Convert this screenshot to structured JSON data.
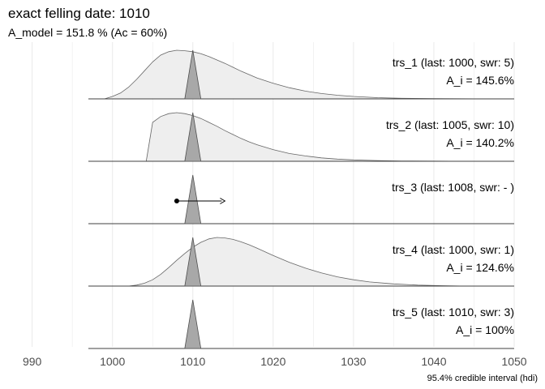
{
  "chart_data": {
    "type": "area",
    "title": "exact felling date:  1010",
    "subtitle": "A_model =  151.8 % (Ac = 60%)",
    "caption": "95.4% credible interval (hdi)",
    "xlim": [
      986,
      1050
    ],
    "x_ticks": [
      "990",
      "1000",
      "1010",
      "1020",
      "1030",
      "1040",
      "1050"
    ],
    "x_tick_values": [
      990,
      1000,
      1010,
      1020,
      1030,
      1040,
      1050
    ],
    "felling_date": 1010,
    "panels": [
      {
        "label": "trs_1 (last: 1000, swr: 5)",
        "agreement": "A_i = 145.6%",
        "density": [
          [
            999,
            0.0
          ],
          [
            1000,
            0.05
          ],
          [
            1001,
            0.12
          ],
          [
            1002,
            0.24
          ],
          [
            1003,
            0.4
          ],
          [
            1004,
            0.58
          ],
          [
            1005,
            0.76
          ],
          [
            1006,
            0.9
          ],
          [
            1007,
            0.97
          ],
          [
            1008,
            1.0
          ],
          [
            1009,
            0.99
          ],
          [
            1010,
            0.97
          ],
          [
            1011,
            0.93
          ],
          [
            1012,
            0.87
          ],
          [
            1013,
            0.8
          ],
          [
            1014,
            0.73
          ],
          [
            1015,
            0.65
          ],
          [
            1016,
            0.57
          ],
          [
            1017,
            0.5
          ],
          [
            1018,
            0.43
          ],
          [
            1020,
            0.32
          ],
          [
            1022,
            0.23
          ],
          [
            1024,
            0.16
          ],
          [
            1026,
            0.11
          ],
          [
            1028,
            0.075
          ],
          [
            1030,
            0.05
          ],
          [
            1033,
            0.025
          ],
          [
            1036,
            0.012
          ],
          [
            1040,
            0.005
          ],
          [
            1045,
            0.002
          ],
          [
            1048,
            0.0
          ]
        ]
      },
      {
        "label": "trs_2 (last: 1005, swr: 10)",
        "agreement": "A_i = 140.2%",
        "density": [
          [
            1004.2,
            0.0
          ],
          [
            1005,
            0.8
          ],
          [
            1006,
            0.92
          ],
          [
            1007,
            0.98
          ],
          [
            1008,
            1.0
          ],
          [
            1009,
            0.98
          ],
          [
            1010,
            0.94
          ],
          [
            1011,
            0.88
          ],
          [
            1012,
            0.8
          ],
          [
            1013,
            0.72
          ],
          [
            1014,
            0.63
          ],
          [
            1015,
            0.55
          ],
          [
            1016,
            0.47
          ],
          [
            1017,
            0.4
          ],
          [
            1018,
            0.34
          ],
          [
            1020,
            0.24
          ],
          [
            1022,
            0.16
          ],
          [
            1024,
            0.11
          ],
          [
            1026,
            0.07
          ],
          [
            1028,
            0.045
          ],
          [
            1030,
            0.028
          ],
          [
            1033,
            0.015
          ],
          [
            1036,
            0.007
          ],
          [
            1040,
            0.003
          ],
          [
            1044,
            0.0
          ]
        ]
      },
      {
        "label": "trs_3 (last: 1008, swr: - )",
        "agreement": "",
        "density": [],
        "min_date": 1008,
        "arrow_to": 1014
      },
      {
        "label": "trs_4 (last: 1000, swr: 1)",
        "agreement": "A_i = 124.6%",
        "density": [
          [
            1002,
            0.0
          ],
          [
            1003,
            0.02
          ],
          [
            1004,
            0.06
          ],
          [
            1005,
            0.13
          ],
          [
            1006,
            0.24
          ],
          [
            1007,
            0.38
          ],
          [
            1008,
            0.53
          ],
          [
            1009,
            0.67
          ],
          [
            1010,
            0.8
          ],
          [
            1011,
            0.9
          ],
          [
            1012,
            0.97
          ],
          [
            1013,
            1.0
          ],
          [
            1014,
            0.99
          ],
          [
            1015,
            0.96
          ],
          [
            1016,
            0.91
          ],
          [
            1017,
            0.85
          ],
          [
            1018,
            0.78
          ],
          [
            1020,
            0.63
          ],
          [
            1022,
            0.49
          ],
          [
            1024,
            0.37
          ],
          [
            1026,
            0.27
          ],
          [
            1028,
            0.19
          ],
          [
            1030,
            0.13
          ],
          [
            1032,
            0.085
          ],
          [
            1035,
            0.045
          ],
          [
            1038,
            0.02
          ],
          [
            1041,
            0.008
          ],
          [
            1044,
            0.0
          ]
        ]
      },
      {
        "label": "trs_5 (last: 1010, swr: 3)",
        "agreement": "A_i = 100%",
        "density": []
      }
    ],
    "colors": {
      "density_fill": "#eeeeee",
      "density_line": "#666666",
      "peak_fill": "#a8a8a8",
      "peak_line": "#505050",
      "grid": "#ebebeb",
      "baseline": "#404040"
    }
  }
}
